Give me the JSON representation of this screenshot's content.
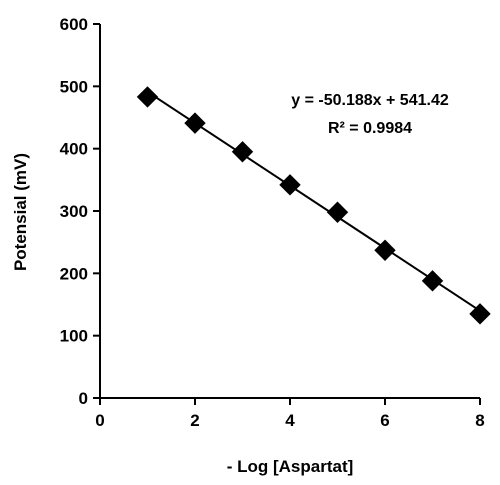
{
  "chart_data": {
    "type": "scatter",
    "title": "",
    "xlabel": "- Log [Aspartat]",
    "ylabel": "Potensial (mV)",
    "xlim": [
      0,
      8
    ],
    "ylim": [
      0,
      600
    ],
    "xticks": [
      0,
      2,
      4,
      6,
      8
    ],
    "yticks": [
      0,
      100,
      200,
      300,
      400,
      500,
      600
    ],
    "grid": false,
    "legend": "none",
    "marker": "diamond",
    "marker_color": "#000000",
    "series": [
      {
        "x": [
          1,
          2,
          3,
          4,
          5,
          6,
          7,
          8
        ],
        "y": [
          483,
          441,
          395,
          342,
          298,
          237,
          188,
          135
        ]
      }
    ],
    "trendline": {
      "type": "linear",
      "slope": -50.188,
      "intercept": 541.42,
      "equation": "y = -50.188x + 541.42",
      "r_squared": "R² = 0.9984"
    }
  }
}
